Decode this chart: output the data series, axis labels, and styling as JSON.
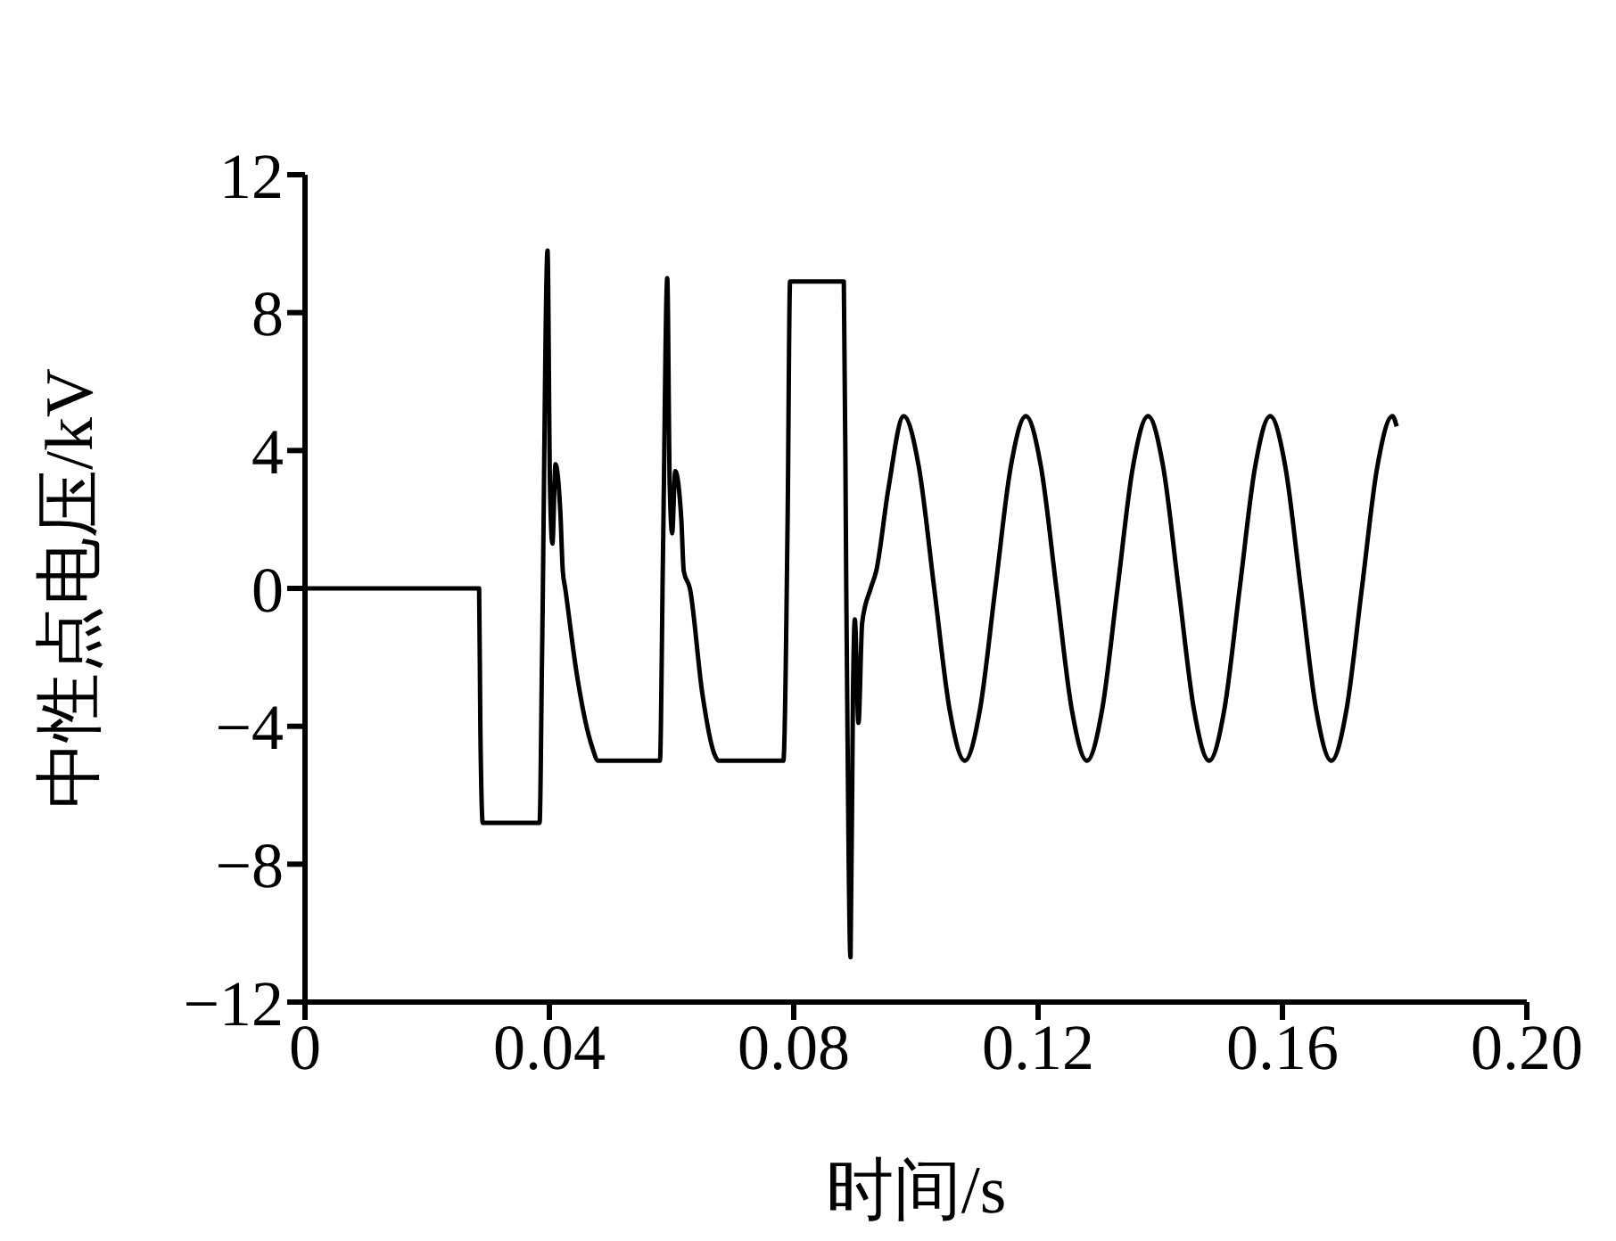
{
  "chart_data": {
    "type": "line",
    "xlabel": "时间/s",
    "ylabel": "中性点电压/kV",
    "x": [
      0,
      0.0285,
      0.0287,
      0.0291,
      0.0384,
      0.0388,
      0.0397,
      0.0401,
      0.0405,
      0.041,
      0.0418,
      0.0422,
      0.0426,
      0.0445,
      0.047,
      0.048,
      0.0581,
      0.0586,
      0.0593,
      0.0597,
      0.0601,
      0.0606,
      0.0616,
      0.062,
      0.063,
      0.065,
      0.067,
      0.0677,
      0.0783,
      0.079,
      0.0794,
      0.0882,
      0.0886,
      0.0893,
      0.0897,
      0.09,
      0.0906,
      0.0912,
      0.0926,
      0.0935,
      0.0955,
      0.098,
      0.1005,
      0.103,
      0.1055,
      0.108,
      0.1105,
      0.113,
      0.1155,
      0.118,
      0.1205,
      0.123,
      0.1255,
      0.128,
      0.1305,
      0.133,
      0.1355,
      0.138,
      0.1405,
      0.143,
      0.1455,
      0.148,
      0.1505,
      0.153,
      0.1555,
      0.158,
      0.1605,
      0.163,
      0.1655,
      0.168,
      0.1705,
      0.173,
      0.1755,
      0.178,
      0.1787
    ],
    "values": [
      0,
      0,
      -4,
      -6.8,
      -6.8,
      -2,
      9.8,
      3,
      1.3,
      3.6,
      2.2,
      0.5,
      0,
      -2.5,
      -4.6,
      -5,
      -5,
      1,
      9,
      3,
      1.6,
      3.4,
      2,
      0.5,
      0,
      -3,
      -4.8,
      -5,
      -5,
      2,
      8.9,
      8.9,
      0,
      -10.7,
      -3,
      -0.9,
      -3.9,
      -1,
      0,
      0.5,
      2.9,
      5,
      3.5,
      0,
      -3.5,
      -5,
      -3.5,
      0,
      3.5,
      5,
      3.5,
      0,
      -3.5,
      -5,
      -3.5,
      0,
      3.5,
      5,
      3.5,
      0,
      -3.5,
      -5,
      -3.5,
      0,
      3.5,
      5,
      3.5,
      0,
      -3.5,
      -5,
      -3.5,
      0,
      3.5,
      5,
      4.7
    ],
    "color": "#000000",
    "xlim": [
      0,
      0.2
    ],
    "xticks": [
      0,
      0.04,
      0.08,
      0.12,
      0.16,
      {
        "value": 0.2,
        "label": "0.20"
      }
    ],
    "ylim": [
      -12,
      12
    ],
    "yticks": [
      {
        "value": -12,
        "label": "−12"
      },
      {
        "value": -8,
        "label": "−8"
      },
      {
        "value": -4,
        "label": "−4"
      },
      0,
      4,
      8,
      12
    ],
    "grid": false,
    "legend": false,
    "marker": "none",
    "line_style": "solid"
  }
}
